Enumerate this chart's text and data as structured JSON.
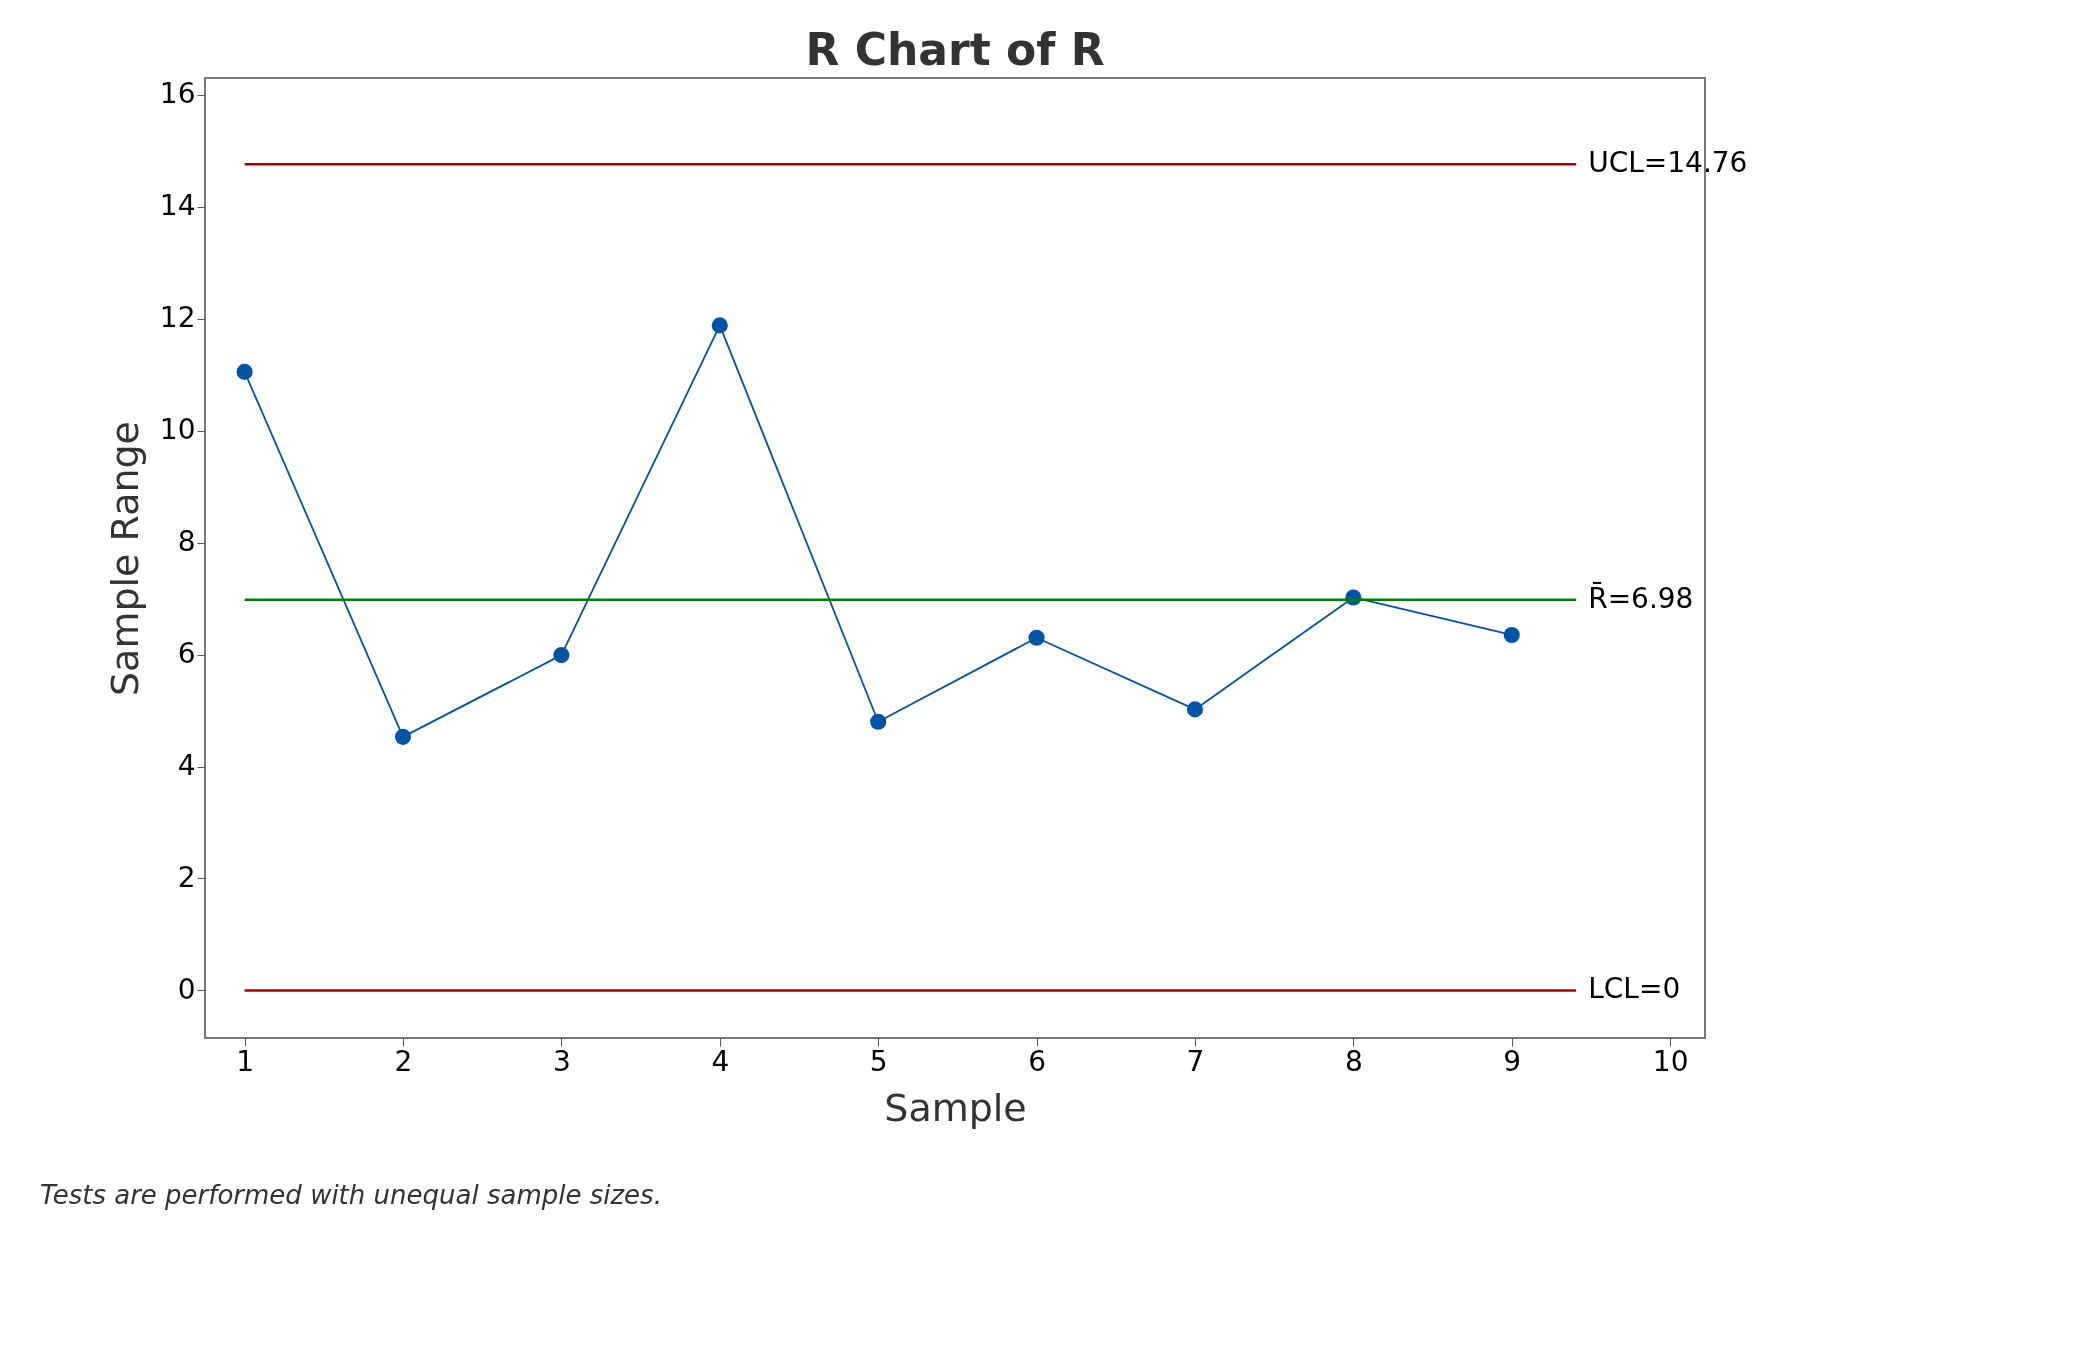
{
  "chart_data": {
    "type": "line",
    "title": "R Chart of R",
    "xlabel": "Sample",
    "ylabel": "Sample Range",
    "x": [
      1,
      2,
      3,
      4,
      5,
      6,
      7,
      8,
      9
    ],
    "series": [
      {
        "color": "#0054a6",
        "values": [
          11.05,
          4.53,
          5.99,
          11.88,
          4.8,
          6.3,
          5.02,
          7.02,
          6.35
        ]
      }
    ],
    "xlim": [
      0.75,
      10.22
    ],
    "xticks": [
      1,
      2,
      3,
      4,
      5,
      6,
      7,
      8,
      9,
      10
    ],
    "ylim": [
      -0.85,
      16.3
    ],
    "yticks": [
      0,
      2,
      4,
      6,
      8,
      10,
      12,
      14,
      16
    ],
    "ref_lines": [
      {
        "axis": "y",
        "value": 14.76,
        "label": "UCL=14.76",
        "color": "#a50000"
      },
      {
        "axis": "y",
        "value": 6.98,
        "label": "R̄=6.98",
        "color": "#008000"
      },
      {
        "axis": "y",
        "value": 0,
        "label": "LCL=0",
        "color": "#a50000"
      }
    ],
    "annotations": [
      "Tests are performed with unequal sample sizes."
    ],
    "marker": "circle",
    "line_style": "solid",
    "grid": false
  }
}
